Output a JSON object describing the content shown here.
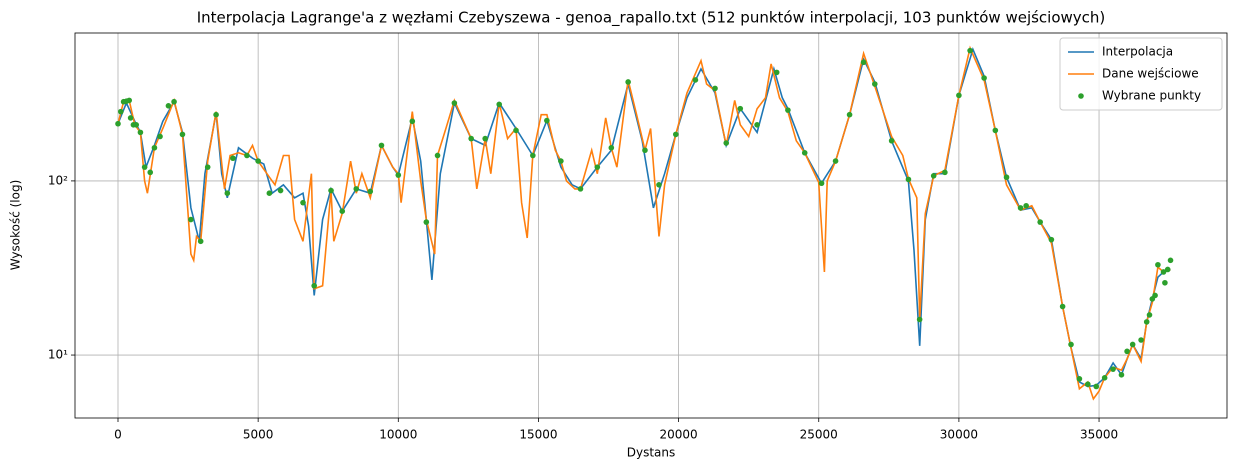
{
  "chart_data": {
    "type": "line",
    "title": "Interpolacja Lagrange'a z węzłami Czebyszewa - genoa_rapallo.txt (512 punktów interpolacji, 103 punktów wejściowych)",
    "x_label": "Dystans",
    "y_label": "Wysokość (log)",
    "xlim": [
      -1534,
      39565
    ],
    "xticks": [
      0,
      5000,
      10000,
      15000,
      20000,
      25000,
      30000,
      35000
    ],
    "ylim": [
      4.35,
      707
    ],
    "yticks": [
      {
        "value": 10,
        "label": "10¹"
      },
      {
        "value": 100,
        "label": "10²"
      }
    ],
    "yscale": "log",
    "grid": true,
    "legend": "upper right",
    "series": [
      {
        "name": "Interpolacja",
        "color": "#1f77b4",
        "kind": "line",
        "x": [
          0,
          300,
          600,
          800,
          1000,
          1300,
          1600,
          2000,
          2300,
          2600,
          2900,
          3100,
          3500,
          3700,
          3900,
          4300,
          4800,
          5200,
          5500,
          5900,
          6300,
          6600,
          6800,
          7000,
          7300,
          7600,
          8000,
          8500,
          9000,
          9400,
          9800,
          10000,
          10500,
          10800,
          11000,
          11200,
          11500,
          12000,
          12600,
          13100,
          13600,
          14200,
          14800,
          15300,
          15800,
          16200,
          16500,
          17100,
          17600,
          18200,
          18700,
          19100,
          19500,
          19900,
          20300,
          20800,
          21300,
          21700,
          22200,
          22800,
          23400,
          23700,
          23900,
          24500,
          25100,
          25600,
          26100,
          26600,
          27000,
          27600,
          28200,
          28400,
          28600,
          28800,
          29100,
          29500,
          30000,
          30500,
          30900,
          31300,
          31700,
          32200,
          32600,
          32900,
          33300,
          33700,
          34000,
          34300,
          34600,
          34900,
          35200,
          35500,
          35800,
          36000,
          36200,
          36500,
          36700,
          36900,
          37100,
          37300,
          37550
        ],
        "values": [
          213,
          280,
          220,
          190,
          120,
          160,
          220,
          285,
          190,
          70,
          45,
          110,
          245,
          110,
          80,
          155,
          135,
          125,
          85,
          95,
          80,
          85,
          55,
          22,
          60,
          90,
          67,
          90,
          85,
          160,
          120,
          108,
          230,
          130,
          60,
          27,
          110,
          280,
          175,
          160,
          280,
          200,
          140,
          222,
          120,
          95,
          90,
          120,
          150,
          360,
          170,
          70,
          110,
          185,
          300,
          440,
          320,
          160,
          260,
          190,
          440,
          300,
          260,
          145,
          97,
          130,
          240,
          500,
          370,
          170,
          100,
          40,
          11.3,
          60,
          110,
          110,
          310,
          570,
          400,
          195,
          105,
          68,
          70,
          58,
          46,
          19,
          11,
          7,
          6.6,
          6.7,
          7.4,
          9,
          7.7,
          9.5,
          11.5,
          9.5,
          15.5,
          21,
          28,
          30,
          31
        ]
      },
      {
        "name": "Dane wejściowe",
        "color": "#ff7f0e",
        "kind": "line",
        "x": [
          0,
          200,
          400,
          600,
          800,
          950,
          1050,
          1300,
          1600,
          2000,
          2300,
          2600,
          2700,
          2800,
          2950,
          3200,
          3500,
          3800,
          4000,
          4300,
          4600,
          4800,
          5000,
          5400,
          5600,
          5900,
          6100,
          6300,
          6600,
          6900,
          7000,
          7300,
          7600,
          7700,
          8000,
          8300,
          8500,
          8700,
          9000,
          9400,
          9800,
          10000,
          10100,
          10500,
          10800,
          11000,
          11300,
          11400,
          11700,
          12000,
          12600,
          12800,
          13100,
          13300,
          13600,
          13900,
          14200,
          14400,
          14600,
          14800,
          15100,
          15300,
          15600,
          15800,
          16000,
          16300,
          16500,
          16900,
          17100,
          17400,
          17600,
          17800,
          18200,
          18500,
          18800,
          19000,
          19300,
          19500,
          19900,
          20300,
          20800,
          21000,
          21300,
          21700,
          22000,
          22200,
          22500,
          22800,
          23100,
          23300,
          23600,
          23900,
          24200,
          24500,
          25000,
          25200,
          25300,
          25600,
          26100,
          26600,
          27000,
          27600,
          28000,
          28200,
          28500,
          28600,
          28800,
          29100,
          29500,
          30000,
          30400,
          30900,
          31300,
          31700,
          32200,
          32600,
          32900,
          33300,
          33700,
          34000,
          34300,
          34600,
          34800,
          35000,
          35200,
          35500,
          35800,
          36000,
          36200,
          36500,
          36700,
          36900,
          37100,
          37300,
          37550
        ],
        "values": [
          213,
          285,
          290,
          210,
          190,
          100,
          85,
          155,
          200,
          290,
          185,
          38,
          35,
          48,
          45,
          130,
          250,
          90,
          140,
          145,
          140,
          160,
          130,
          105,
          95,
          140,
          140,
          60,
          45,
          110,
          24,
          25,
          88,
          45,
          65,
          130,
          85,
          110,
          80,
          160,
          120,
          110,
          75,
          250,
          100,
          60,
          38,
          140,
          200,
          290,
          175,
          90,
          175,
          110,
          280,
          175,
          200,
          75,
          47,
          140,
          240,
          240,
          150,
          130,
          100,
          90,
          90,
          150,
          110,
          230,
          155,
          120,
          380,
          240,
          150,
          200,
          48,
          95,
          185,
          320,
          490,
          360,
          330,
          160,
          290,
          210,
          180,
          260,
          300,
          470,
          300,
          250,
          170,
          145,
          98,
          30,
          100,
          130,
          240,
          540,
          350,
          180,
          140,
          103,
          80,
          16,
          65,
          107,
          115,
          310,
          580,
          380,
          195,
          95,
          68,
          72,
          58,
          44,
          19,
          11,
          6.4,
          7,
          5.6,
          6.2,
          7.4,
          8.5,
          8.2,
          9.5,
          11.5,
          9.2,
          15.5,
          20,
          32,
          30,
          31
        ]
      },
      {
        "name": "Wybrane punkty",
        "color": "#2ca02c",
        "kind": "scatter",
        "x": [
          0,
          100,
          200,
          300,
          400,
          450,
          550,
          650,
          800,
          950,
          1150,
          1300,
          1500,
          1800,
          2000,
          2300,
          2600,
          2950,
          3200,
          3500,
          3900,
          4100,
          4600,
          5000,
          5400,
          5800,
          6600,
          7000,
          7600,
          8000,
          8500,
          9000,
          9400,
          10000,
          10500,
          11000,
          11400,
          12000,
          12600,
          13100,
          13600,
          14200,
          14800,
          15300,
          15800,
          16500,
          17100,
          17600,
          18200,
          18800,
          19300,
          19900,
          20600,
          21300,
          21700,
          22200,
          22800,
          23500,
          23900,
          24500,
          25100,
          25600,
          26100,
          26600,
          27000,
          27600,
          28200,
          28600,
          29100,
          29500,
          30000,
          30400,
          30900,
          31300,
          31700,
          32200,
          32400,
          32900,
          33300,
          33700,
          34000,
          34300,
          34600,
          34900,
          35200,
          35500,
          35800,
          36000,
          36200,
          36500,
          36700,
          36800,
          36900,
          37000,
          37100,
          37300,
          37350,
          37450,
          37550
        ],
        "values": [
          213,
          250,
          285,
          287,
          290,
          230,
          210,
          210,
          190,
          120,
          112,
          155,
          180,
          270,
          285,
          185,
          60,
          45,
          120,
          240,
          85,
          135,
          140,
          130,
          85,
          88,
          75,
          25,
          88,
          67,
          90,
          87,
          160,
          108,
          220,
          58,
          140,
          280,
          175,
          175,
          275,
          195,
          140,
          222,
          130,
          90,
          120,
          155,
          370,
          150,
          95,
          185,
          380,
          340,
          165,
          260,
          210,
          420,
          255,
          145,
          97,
          130,
          240,
          480,
          360,
          170,
          102,
          16,
          107,
          112,
          310,
          560,
          390,
          195,
          105,
          70,
          72,
          58,
          46,
          19,
          11.5,
          7.3,
          6.8,
          6.6,
          7.4,
          8.3,
          7.7,
          10.5,
          11.5,
          12.2,
          15.5,
          17,
          21,
          22,
          33,
          30,
          26,
          31,
          35
        ]
      }
    ]
  }
}
